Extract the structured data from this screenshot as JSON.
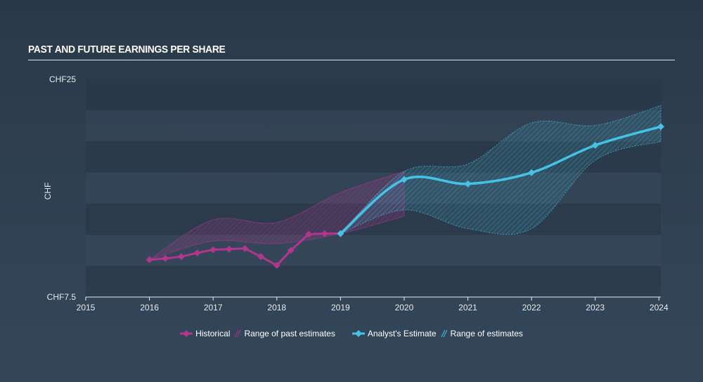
{
  "header": {
    "title": "PAST AND FUTURE EARNINGS PER SHARE"
  },
  "chart_data": {
    "type": "line",
    "title": "PAST AND FUTURE EARNINGS PER SHARE",
    "ylabel": "CHF",
    "xlabel": "",
    "xlim": [
      2015,
      2024.03
    ],
    "ylim": [
      7.5,
      25
    ],
    "y_tick_labels": [
      "CHF25",
      "CHF7.5"
    ],
    "x_ticks": [
      2015,
      2016,
      2017,
      2018,
      2019,
      2020,
      2021,
      2022,
      2023,
      2024
    ],
    "grid": true,
    "legend_position": "bottom-center",
    "colors": {
      "historical": "#b0368f",
      "past_range": "#b0368f",
      "estimate": "#45c3e6",
      "estimate_range": "#45c3e6"
    },
    "series": [
      {
        "name": "Historical",
        "x": [
          2016.0,
          2016.25,
          2016.5,
          2016.75,
          2017.0,
          2017.25,
          2017.5,
          2017.75,
          2018.0,
          2018.22,
          2018.5,
          2018.75,
          2019.0
        ],
        "values": [
          10.5,
          10.6,
          10.75,
          11.05,
          11.3,
          11.35,
          11.4,
          10.75,
          10.05,
          11.25,
          12.55,
          12.6,
          12.6
        ]
      },
      {
        "name": "Analyst's Estimate",
        "x": [
          2019.0,
          2020.0,
          2021.0,
          2022.0,
          2023.0,
          2024.03
        ],
        "values": [
          12.6,
          16.95,
          16.6,
          17.5,
          19.7,
          21.2
        ]
      }
    ],
    "ranges": [
      {
        "name": "Range of past estimates",
        "x": [
          2016.0,
          2017.0,
          2018.0,
          2019.0,
          2020.0
        ],
        "low": [
          10.5,
          12.0,
          11.8,
          12.6,
          14.0
        ],
        "high": [
          10.5,
          13.7,
          13.5,
          15.9,
          17.6
        ]
      },
      {
        "name": "Range of estimates",
        "x": [
          2019.0,
          2020.0,
          2021.0,
          2022.0,
          2023.0,
          2024.03
        ],
        "low": [
          12.6,
          14.5,
          13.0,
          13.0,
          18.5,
          20.0
        ],
        "high": [
          12.6,
          17.6,
          18.2,
          21.5,
          21.3,
          22.9
        ]
      }
    ]
  }
}
